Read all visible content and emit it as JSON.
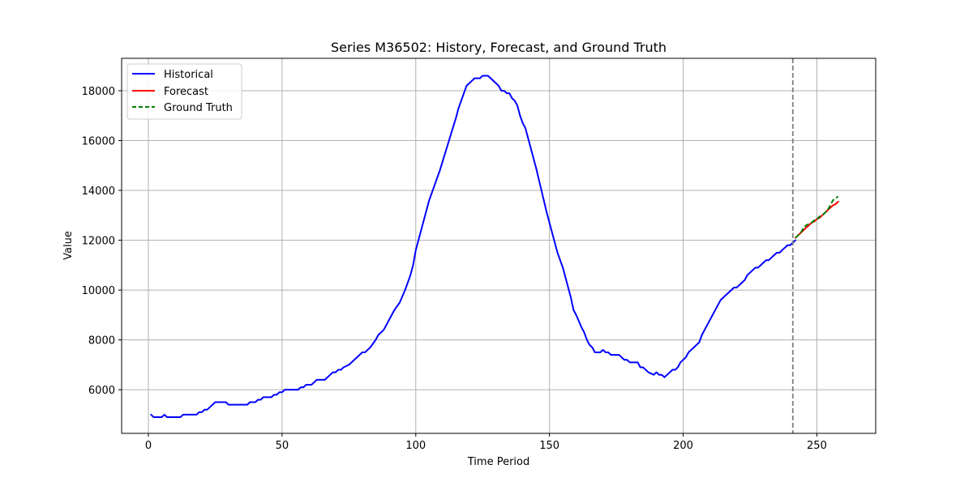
{
  "chart_data": {
    "type": "line",
    "title": "Series M36502: History, Forecast, and Ground Truth",
    "xlabel": "Time Period",
    "ylabel": "Value",
    "xlim": [
      -10,
      272
    ],
    "ylim": [
      4250,
      19300
    ],
    "xticks": [
      0,
      50,
      100,
      150,
      200,
      250
    ],
    "yticks": [
      6000,
      8000,
      10000,
      12000,
      14000,
      16000,
      18000
    ],
    "grid": true,
    "legend_position": "top-left",
    "forecast_origin": 241,
    "series": [
      {
        "name": "Historical",
        "color": "#0000ff",
        "style": "solid",
        "points": [
          [
            1,
            5000
          ],
          [
            2,
            4900
          ],
          [
            3,
            4900
          ],
          [
            5,
            4900
          ],
          [
            6,
            5000
          ],
          [
            7,
            4900
          ],
          [
            10,
            4900
          ],
          [
            12,
            4900
          ],
          [
            13,
            5000
          ],
          [
            18,
            5000
          ],
          [
            19,
            5100
          ],
          [
            20,
            5100
          ],
          [
            21,
            5200
          ],
          [
            22,
            5200
          ],
          [
            23,
            5300
          ],
          [
            25,
            5500
          ],
          [
            29,
            5500
          ],
          [
            30,
            5400
          ],
          [
            37,
            5400
          ],
          [
            38,
            5500
          ],
          [
            40,
            5500
          ],
          [
            41,
            5600
          ],
          [
            42,
            5600
          ],
          [
            43,
            5700
          ],
          [
            46,
            5700
          ],
          [
            47,
            5800
          ],
          [
            48,
            5800
          ],
          [
            49,
            5900
          ],
          [
            50,
            5900
          ],
          [
            51,
            6000
          ],
          [
            56,
            6000
          ],
          [
            57,
            6100
          ],
          [
            58,
            6100
          ],
          [
            59,
            6200
          ],
          [
            61,
            6200
          ],
          [
            62,
            6300
          ],
          [
            63,
            6400
          ],
          [
            66,
            6400
          ],
          [
            68,
            6600
          ],
          [
            69,
            6700
          ],
          [
            70,
            6700
          ],
          [
            71,
            6800
          ],
          [
            72,
            6800
          ],
          [
            73,
            6900
          ],
          [
            75,
            7000
          ],
          [
            77,
            7200
          ],
          [
            79,
            7400
          ],
          [
            80,
            7500
          ],
          [
            81,
            7500
          ],
          [
            82,
            7600
          ],
          [
            83,
            7700
          ],
          [
            85,
            8000
          ],
          [
            86,
            8200
          ],
          [
            88,
            8400
          ],
          [
            90,
            8800
          ],
          [
            91,
            9000
          ],
          [
            92,
            9200
          ],
          [
            94,
            9500
          ],
          [
            96,
            10000
          ],
          [
            98,
            10600
          ],
          [
            99,
            11000
          ],
          [
            100,
            11600
          ],
          [
            101,
            12000
          ],
          [
            102,
            12400
          ],
          [
            103,
            12800
          ],
          [
            104,
            13200
          ],
          [
            105,
            13600
          ],
          [
            107,
            14200
          ],
          [
            109,
            14800
          ],
          [
            111,
            15500
          ],
          [
            113,
            16200
          ],
          [
            115,
            16900
          ],
          [
            116,
            17300
          ],
          [
            117,
            17600
          ],
          [
            118,
            17900
          ],
          [
            119,
            18200
          ],
          [
            120,
            18300
          ],
          [
            121,
            18400
          ],
          [
            122,
            18500
          ],
          [
            124,
            18500
          ],
          [
            125,
            18600
          ],
          [
            127,
            18600
          ],
          [
            128,
            18500
          ],
          [
            130,
            18300
          ],
          [
            131,
            18200
          ],
          [
            132,
            18000
          ],
          [
            133,
            18000
          ],
          [
            134,
            17900
          ],
          [
            135,
            17900
          ],
          [
            136,
            17700
          ],
          [
            137,
            17600
          ],
          [
            138,
            17400
          ],
          [
            139,
            17000
          ],
          [
            140,
            16700
          ],
          [
            141,
            16500
          ],
          [
            142,
            16100
          ],
          [
            143,
            15700
          ],
          [
            145,
            14900
          ],
          [
            147,
            14000
          ],
          [
            149,
            13100
          ],
          [
            151,
            12300
          ],
          [
            153,
            11500
          ],
          [
            155,
            10900
          ],
          [
            157,
            10100
          ],
          [
            158,
            9700
          ],
          [
            159,
            9200
          ],
          [
            160,
            9000
          ],
          [
            162,
            8500
          ],
          [
            163,
            8300
          ],
          [
            164,
            8000
          ],
          [
            165,
            7800
          ],
          [
            166,
            7700
          ],
          [
            167,
            7500
          ],
          [
            169,
            7500
          ],
          [
            170,
            7600
          ],
          [
            171,
            7500
          ],
          [
            172,
            7500
          ],
          [
            173,
            7400
          ],
          [
            176,
            7400
          ],
          [
            177,
            7300
          ],
          [
            178,
            7200
          ],
          [
            179,
            7200
          ],
          [
            180,
            7100
          ],
          [
            183,
            7100
          ],
          [
            184,
            6900
          ],
          [
            185,
            6900
          ],
          [
            186,
            6800
          ],
          [
            187,
            6700
          ],
          [
            189,
            6600
          ],
          [
            190,
            6700
          ],
          [
            191,
            6600
          ],
          [
            192,
            6600
          ],
          [
            193,
            6500
          ],
          [
            194,
            6600
          ],
          [
            195,
            6700
          ],
          [
            196,
            6800
          ],
          [
            197,
            6800
          ],
          [
            198,
            6900
          ],
          [
            199,
            7100
          ],
          [
            200,
            7200
          ],
          [
            201,
            7300
          ],
          [
            202,
            7500
          ],
          [
            203,
            7600
          ],
          [
            204,
            7700
          ],
          [
            205,
            7800
          ],
          [
            206,
            7900
          ],
          [
            207,
            8200
          ],
          [
            209,
            8600
          ],
          [
            211,
            9000
          ],
          [
            213,
            9400
          ],
          [
            214,
            9600
          ],
          [
            216,
            9800
          ],
          [
            218,
            10000
          ],
          [
            219,
            10100
          ],
          [
            220,
            10100
          ],
          [
            221,
            10200
          ],
          [
            222,
            10300
          ],
          [
            223,
            10400
          ],
          [
            224,
            10600
          ],
          [
            225,
            10700
          ],
          [
            226,
            10800
          ],
          [
            227,
            10900
          ],
          [
            228,
            10900
          ],
          [
            229,
            11000
          ],
          [
            230,
            11100
          ],
          [
            231,
            11200
          ],
          [
            232,
            11200
          ],
          [
            233,
            11300
          ],
          [
            234,
            11400
          ],
          [
            235,
            11500
          ],
          [
            236,
            11500
          ],
          [
            237,
            11600
          ],
          [
            238,
            11700
          ],
          [
            239,
            11800
          ],
          [
            240,
            11800
          ],
          [
            241,
            11900
          ],
          [
            242,
            12000
          ]
        ]
      },
      {
        "name": "Forecast",
        "color": "#ff0000",
        "style": "solid",
        "points": [
          [
            242,
            12100
          ],
          [
            243,
            12200
          ],
          [
            244,
            12300
          ],
          [
            245,
            12400
          ],
          [
            246,
            12500
          ],
          [
            247,
            12600
          ],
          [
            248,
            12700
          ],
          [
            249,
            12750
          ],
          [
            250,
            12850
          ],
          [
            251,
            12900
          ],
          [
            252,
            13000
          ],
          [
            253,
            13100
          ],
          [
            254,
            13200
          ],
          [
            255,
            13300
          ],
          [
            256,
            13400
          ],
          [
            257,
            13450
          ],
          [
            258,
            13550
          ]
        ]
      },
      {
        "name": "Ground Truth",
        "color": "#008000",
        "style": "dashed",
        "points": [
          [
            242,
            12100
          ],
          [
            243,
            12200
          ],
          [
            244,
            12300
          ],
          [
            245,
            12500
          ],
          [
            246,
            12600
          ],
          [
            247,
            12650
          ],
          [
            248,
            12700
          ],
          [
            249,
            12800
          ],
          [
            250,
            12850
          ],
          [
            251,
            12950
          ],
          [
            252,
            13000
          ],
          [
            253,
            13100
          ],
          [
            254,
            13200
          ],
          [
            255,
            13400
          ],
          [
            256,
            13600
          ],
          [
            257,
            13700
          ],
          [
            258,
            13750
          ]
        ]
      }
    ]
  }
}
